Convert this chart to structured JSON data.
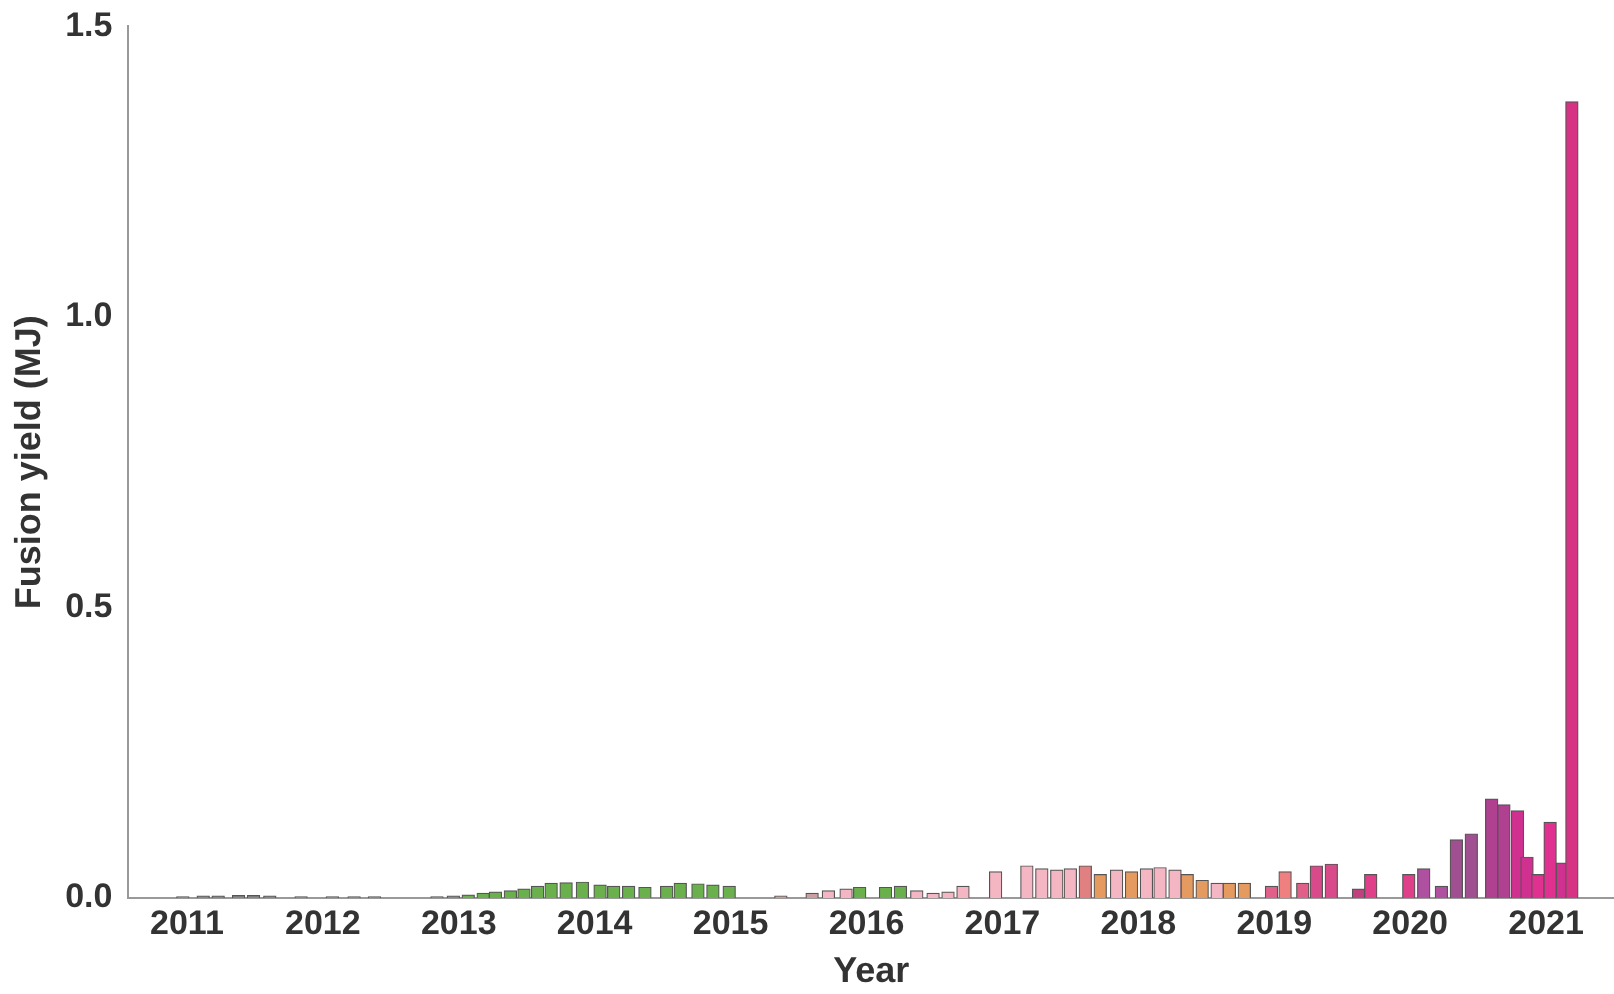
{
  "chart_data": {
    "type": "bar",
    "xlabel": "Year",
    "ylabel": "Fusion yield (MJ)",
    "x": [
      2011.47,
      2011.62,
      2011.73,
      2011.88,
      2011.99,
      2012.11,
      2012.34,
      2012.57,
      2012.73,
      2012.88,
      2013.34,
      2013.46,
      2013.57,
      2013.68,
      2013.77,
      2013.88,
      2013.98,
      2014.08,
      2014.18,
      2014.29,
      2014.41,
      2014.54,
      2014.64,
      2014.75,
      2014.87,
      2015.03,
      2015.13,
      2015.26,
      2015.37,
      2015.49,
      2015.87,
      2016.1,
      2016.22,
      2016.35,
      2016.45,
      2016.64,
      2016.75,
      2016.87,
      2016.99,
      2017.1,
      2017.21,
      2017.45,
      2017.68,
      2017.79,
      2017.9,
      2018.0,
      2018.11,
      2018.22,
      2018.34,
      2018.45,
      2018.56,
      2018.66,
      2018.77,
      2018.86,
      2018.97,
      2019.08,
      2019.17,
      2019.28,
      2019.48,
      2019.58,
      2019.71,
      2019.81,
      2019.92,
      2020.12,
      2020.21,
      2020.49,
      2020.6,
      2020.73,
      2020.84,
      2020.95,
      2021.1,
      2021.19,
      2021.29,
      2021.36,
      2021.44,
      2021.53,
      2021.62,
      2021.69
    ],
    "values": [
      0.002,
      0.003,
      0.003,
      0.004,
      0.004,
      0.003,
      0.002,
      0.002,
      0.002,
      0.002,
      0.002,
      0.003,
      0.005,
      0.008,
      0.01,
      0.012,
      0.015,
      0.02,
      0.025,
      0.026,
      0.027,
      0.022,
      0.02,
      0.02,
      0.018,
      0.02,
      0.025,
      0.024,
      0.022,
      0.02,
      0.003,
      0.008,
      0.012,
      0.015,
      0.018,
      0.018,
      0.02,
      0.012,
      0.008,
      0.01,
      0.02,
      0.045,
      0.055,
      0.05,
      0.048,
      0.05,
      0.055,
      0.04,
      0.048,
      0.045,
      0.05,
      0.052,
      0.048,
      0.04,
      0.03,
      0.025,
      0.025,
      0.025,
      0.02,
      0.045,
      0.025,
      0.055,
      0.058,
      0.015,
      0.04,
      0.04,
      0.05,
      0.02,
      0.1,
      0.11,
      0.17,
      0.16,
      0.15,
      0.07,
      0.04,
      0.13,
      0.06,
      1.37
    ],
    "colors": [
      "#888888",
      "#888888",
      "#888888",
      "#888888",
      "#888888",
      "#888888",
      "#888888",
      "#888888",
      "#888888",
      "#888888",
      "#888888",
      "#888888",
      "#6ab04c",
      "#6ab04c",
      "#6ab04c",
      "#6ab04c",
      "#6ab04c",
      "#6ab04c",
      "#6ab04c",
      "#6ab04c",
      "#6ab04c",
      "#6ab04c",
      "#6ab04c",
      "#6ab04c",
      "#6ab04c",
      "#6ab04c",
      "#6ab04c",
      "#6ab04c",
      "#6ab04c",
      "#6ab04c",
      "#c9a0a0",
      "#c9a0a0",
      "#f4b6c2",
      "#f4b6c2",
      "#6ab04c",
      "#6ab04c",
      "#6ab04c",
      "#f4b6c2",
      "#f4b6c2",
      "#f4b6c2",
      "#f4b6c2",
      "#f4b6c2",
      "#f4b6c2",
      "#f4b6c2",
      "#f4b6c2",
      "#f4b6c2",
      "#e08080",
      "#e59a60",
      "#f4b6c2",
      "#e59a60",
      "#f4b6c2",
      "#f4b6c2",
      "#f4b6c2",
      "#e59a60",
      "#e59a60",
      "#f4b6c2",
      "#e59a60",
      "#e59a60",
      "#e0608a",
      "#f08080",
      "#e0608a",
      "#d94a8a",
      "#d94a8a",
      "#c04080",
      "#e0408a",
      "#e0408a",
      "#b050a0",
      "#b050a0",
      "#a05090",
      "#a05090",
      "#b04090",
      "#b04090",
      "#d03090",
      "#d03090",
      "#e03090",
      "#e03090",
      "#d03090",
      "#d63384"
    ],
    "xlim": [
      2011.07,
      2022.0
    ],
    "xticks": [
      {
        "value": 2011.5,
        "label": "2011"
      },
      {
        "value": 2012.5,
        "label": "2012"
      },
      {
        "value": 2013.5,
        "label": "2013"
      },
      {
        "value": 2014.5,
        "label": "2014"
      },
      {
        "value": 2015.5,
        "label": "2015"
      },
      {
        "value": 2016.5,
        "label": "2016"
      },
      {
        "value": 2017.5,
        "label": "2017"
      },
      {
        "value": 2018.5,
        "label": "2018"
      },
      {
        "value": 2019.5,
        "label": "2019"
      },
      {
        "value": 2020.5,
        "label": "2020"
      },
      {
        "value": 2021.5,
        "label": "2021"
      }
    ],
    "ylim": [
      0,
      1.5
    ],
    "yticks": [
      {
        "value": 0,
        "label": "0.0"
      },
      {
        "value": 0.5,
        "label": "0.5"
      },
      {
        "value": 1,
        "label": "1.0"
      },
      {
        "value": 1.5,
        "label": "1.5"
      }
    ]
  }
}
